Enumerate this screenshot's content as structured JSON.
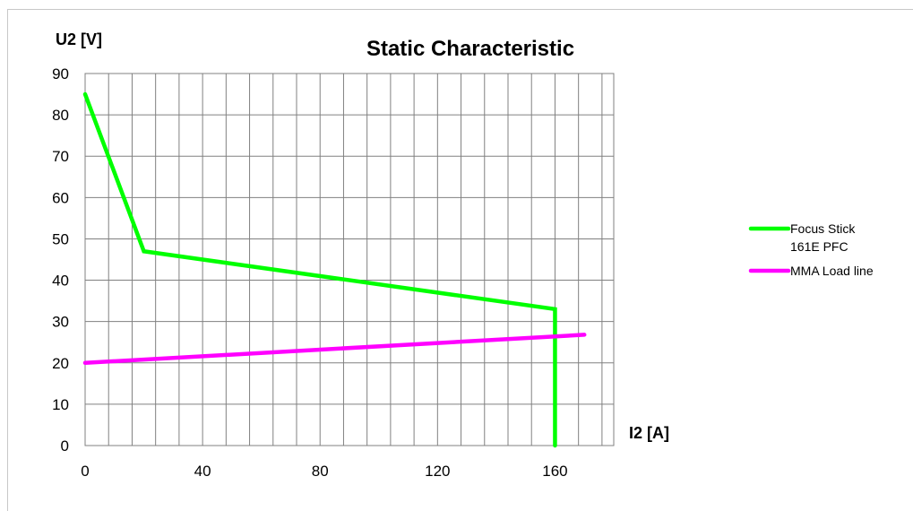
{
  "chart_data": {
    "type": "line",
    "title": "Static Characteristic",
    "xlabel": "I2 [A]",
    "ylabel": "U2 [V]",
    "xlim": [
      0,
      180
    ],
    "ylim": [
      0,
      90
    ],
    "x_tick_step_minor": 8,
    "x_ticks": [
      0,
      40,
      80,
      120,
      160
    ],
    "y_ticks": [
      0,
      10,
      20,
      30,
      40,
      50,
      60,
      70,
      80,
      90
    ],
    "grid": true,
    "legend_position": "right",
    "series": [
      {
        "name_lines": [
          "Focus Stick",
          "161E PFC"
        ],
        "color": "#00ff00",
        "points": [
          [
            0,
            85
          ],
          [
            20,
            47
          ],
          [
            160,
            33
          ],
          [
            160,
            0
          ]
        ]
      },
      {
        "name_lines": [
          "MMA Load line"
        ],
        "color": "#ff00ff",
        "points": [
          [
            0,
            20
          ],
          [
            170,
            26.8
          ]
        ]
      }
    ]
  }
}
